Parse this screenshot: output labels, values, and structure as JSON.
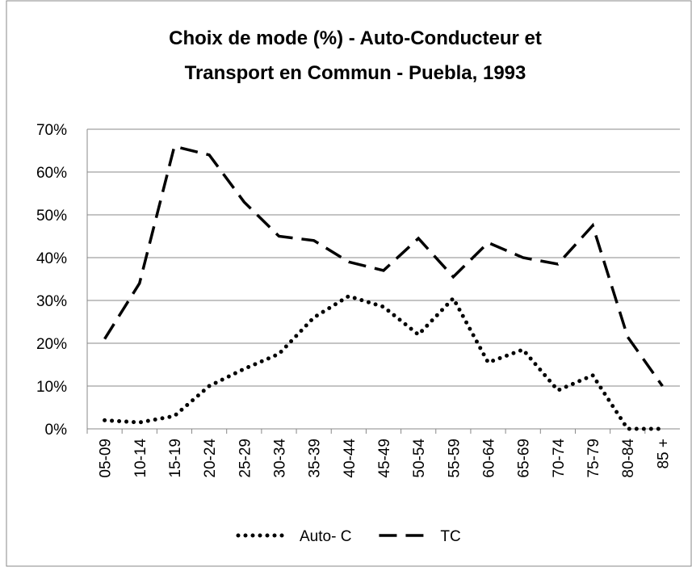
{
  "chart_data": {
    "type": "line",
    "title": [
      "Choix de mode (%) - Auto-Conducteur et",
      "Transport en Commun - Puebla, 1993"
    ],
    "categories": [
      "05-09",
      "10-14",
      "15-19",
      "20-24",
      "25-29",
      "30-34",
      "35-39",
      "40-44",
      "45-49",
      "50-54",
      "55-59",
      "60-64",
      "65-69",
      "70-74",
      "75-79",
      "80-84",
      "85 +"
    ],
    "series": [
      {
        "name": "Auto- C",
        "color": "#000000",
        "dash": "dotted",
        "values": [
          2,
          1.5,
          3,
          10,
          14,
          17.5,
          26,
          31,
          28.5,
          22,
          30.5,
          15.5,
          18.5,
          9,
          12.5,
          0,
          0
        ]
      },
      {
        "name": "TC",
        "color": "#000000",
        "dash": "dashed",
        "values": [
          21,
          34,
          66,
          64,
          53,
          45,
          44,
          39,
          37,
          44.5,
          35.5,
          43.5,
          40,
          38.5,
          47.5,
          21.5,
          10
        ]
      }
    ],
    "ylim": [
      0,
      70
    ],
    "yticks": [
      {
        "value": 0,
        "label": "0%"
      },
      {
        "value": 10,
        "label": "10%"
      },
      {
        "value": 20,
        "label": "20%"
      },
      {
        "value": 30,
        "label": "30%"
      },
      {
        "value": 40,
        "label": "40%"
      },
      {
        "value": 50,
        "label": "50%"
      },
      {
        "value": 60,
        "label": "60%"
      },
      {
        "value": 70,
        "label": "70%"
      }
    ],
    "grid": true,
    "legend": "bottom"
  }
}
